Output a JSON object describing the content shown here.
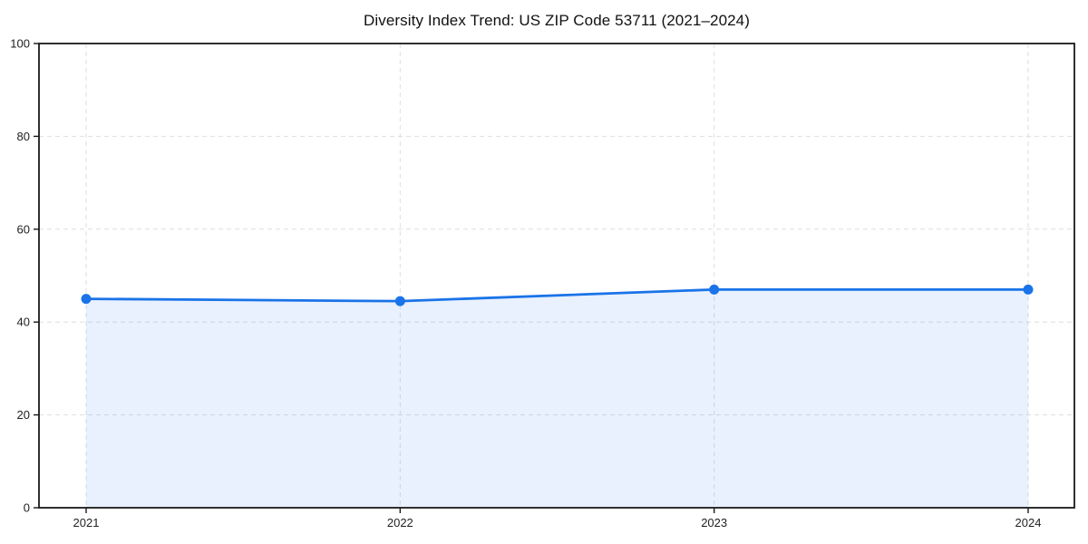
{
  "chart_data": {
    "type": "area",
    "title": "Diversity Index Trend: US ZIP Code 53711 (2021–2024)",
    "categories": [
      "2021",
      "2022",
      "2023",
      "2024"
    ],
    "series": [
      {
        "name": "Diversity Index",
        "values": [
          45,
          44.5,
          47,
          47
        ]
      }
    ],
    "xlabel": "",
    "ylabel": "",
    "ylim": [
      0,
      100
    ],
    "yticks": [
      0,
      20,
      40,
      60,
      80,
      100
    ],
    "grid": true,
    "grid_style": "dashed",
    "legend": "none",
    "marker": "circle",
    "colors": {
      "line": "#1a73e8",
      "marker": "#1a73e8",
      "area_fill": "rgba(26,115,232,0.10)",
      "grid": "#dedede",
      "spine": "#1a1a1a",
      "tick_label": "#1f1f1f",
      "title": "#111111",
      "background": "#ffffff"
    }
  }
}
